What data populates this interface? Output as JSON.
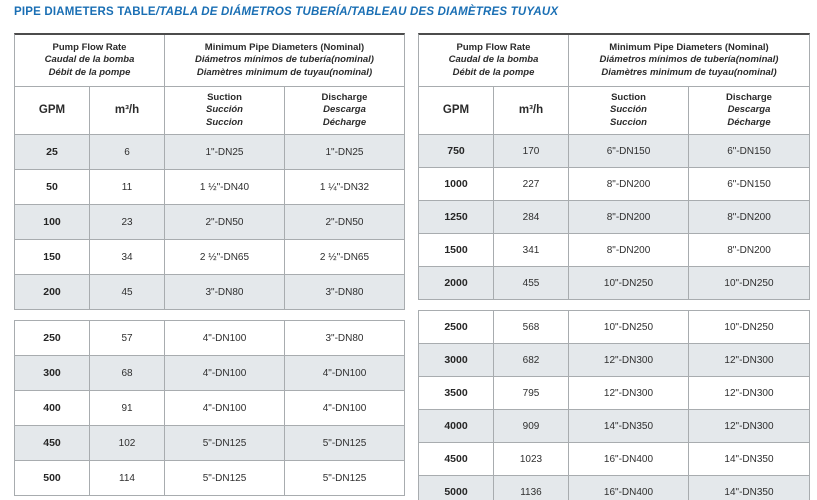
{
  "title": {
    "main": "PIPE DIAMETERS TABLE",
    "rest": "/TABLA DE DIÁMETROS TUBERÍA/TABLEAU DES DIAMÈTRES TUYAUX"
  },
  "colors": {
    "title_blue": "#1a6fb4",
    "row_shaded": "#e4e8eb",
    "border_gray": "#a8acaf",
    "top_border": "#4c4c4c",
    "text": "#2f2f2f"
  },
  "header": {
    "flow_group": {
      "en": "Pump Flow Rate",
      "es": "Caudal de la bomba",
      "fr": "Débit de la pompe"
    },
    "pipe_group": {
      "en": "Minimum Pipe Diameters (Nominal)",
      "es": "Diámetros mínimos de tubería(nominal)",
      "fr": "Diamètres minimum de tuyau(nominal)"
    },
    "col_gpm": "GPM",
    "col_m3h": "m³/h",
    "suction": {
      "en": "Suction",
      "es": "Succión",
      "fr": "Succion"
    },
    "discharge": {
      "en": "Discharge",
      "es": "Descarga",
      "fr": "Décharge"
    }
  },
  "tables": [
    {
      "sections": [
        {
          "rows": [
            {
              "gpm": "25",
              "m3h": "6",
              "suction": "1\"-DN25",
              "discharge": "1\"-DN25",
              "shaded": true
            },
            {
              "gpm": "50",
              "m3h": "11",
              "suction": "1 ½\"-DN40",
              "discharge": "1 ¼\"-DN32",
              "shaded": false
            },
            {
              "gpm": "100",
              "m3h": "23",
              "suction": "2\"-DN50",
              "discharge": "2\"-DN50",
              "shaded": true
            },
            {
              "gpm": "150",
              "m3h": "34",
              "suction": "2 ½\"-DN65",
              "discharge": "2 ½\"-DN65",
              "shaded": false
            },
            {
              "gpm": "200",
              "m3h": "45",
              "suction": "3\"-DN80",
              "discharge": "3\"-DN80",
              "shaded": true
            }
          ]
        },
        {
          "rows": [
            {
              "gpm": "250",
              "m3h": "57",
              "suction": "4\"-DN100",
              "discharge": "3\"-DN80",
              "shaded": false
            },
            {
              "gpm": "300",
              "m3h": "68",
              "suction": "4\"-DN100",
              "discharge": "4\"-DN100",
              "shaded": true
            },
            {
              "gpm": "400",
              "m3h": "91",
              "suction": "4\"-DN100",
              "discharge": "4\"-DN100",
              "shaded": false
            },
            {
              "gpm": "450",
              "m3h": "102",
              "suction": "5\"-DN125",
              "discharge": "5\"-DN125",
              "shaded": true
            },
            {
              "gpm": "500",
              "m3h": "114",
              "suction": "5\"-DN125",
              "discharge": "5\"-DN125",
              "shaded": false
            }
          ]
        }
      ]
    },
    {
      "sections": [
        {
          "rows": [
            {
              "gpm": "750",
              "m3h": "170",
              "suction": "6\"-DN150",
              "discharge": "6\"-DN150",
              "shaded": true
            },
            {
              "gpm": "1000",
              "m3h": "227",
              "suction": "8\"-DN200",
              "discharge": "6\"-DN150",
              "shaded": false
            },
            {
              "gpm": "1250",
              "m3h": "284",
              "suction": "8\"-DN200",
              "discharge": "8\"-DN200",
              "shaded": true
            },
            {
              "gpm": "1500",
              "m3h": "341",
              "suction": "8\"-DN200",
              "discharge": "8\"-DN200",
              "shaded": false
            },
            {
              "gpm": "2000",
              "m3h": "455",
              "suction": "10\"-DN250",
              "discharge": "10\"-DN250",
              "shaded": true
            }
          ]
        },
        {
          "rows": [
            {
              "gpm": "2500",
              "m3h": "568",
              "suction": "10\"-DN250",
              "discharge": "10\"-DN250",
              "shaded": false
            },
            {
              "gpm": "3000",
              "m3h": "682",
              "suction": "12\"-DN300",
              "discharge": "12\"-DN300",
              "shaded": true
            },
            {
              "gpm": "3500",
              "m3h": "795",
              "suction": "12\"-DN300",
              "discharge": "12\"-DN300",
              "shaded": false
            },
            {
              "gpm": "4000",
              "m3h": "909",
              "suction": "14\"-DN350",
              "discharge": "12\"-DN300",
              "shaded": true
            },
            {
              "gpm": "4500",
              "m3h": "1023",
              "suction": "16\"-DN400",
              "discharge": "14\"-DN350",
              "shaded": false
            },
            {
              "gpm": "5000",
              "m3h": "1136",
              "suction": "16\"-DN400",
              "discharge": "14\"-DN350",
              "shaded": true
            }
          ]
        }
      ]
    }
  ]
}
